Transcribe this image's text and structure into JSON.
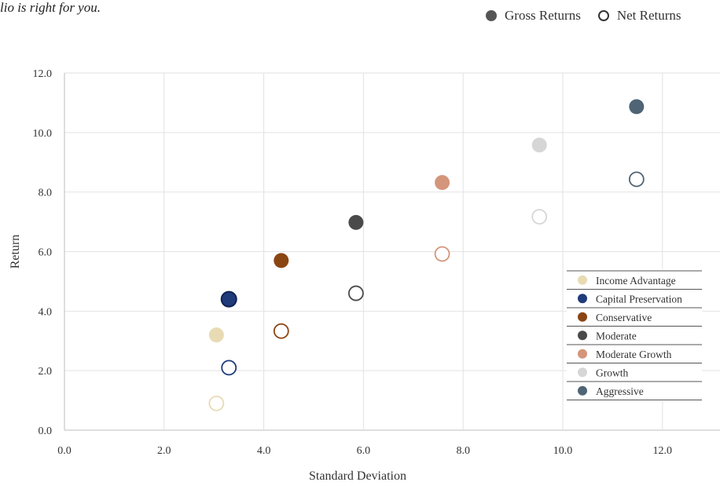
{
  "intro_text": "lio is right for you.",
  "top_legend": {
    "gross_label": "Gross Returns",
    "net_label": "Net Returns"
  },
  "chart_data": {
    "type": "scatter",
    "xlabel": "Standard Deviation",
    "ylabel": "Return",
    "xlim": [
      0,
      13
    ],
    "ylim": [
      0,
      12
    ],
    "x_ticks": [
      "0.0",
      "2.0",
      "4.0",
      "6.0",
      "8.0",
      "10.0",
      "12.0"
    ],
    "y_ticks": [
      "0.0",
      "2.0",
      "4.0",
      "6.0",
      "8.0",
      "10.0",
      "12.0"
    ],
    "grid": true,
    "legend_position": "right",
    "series": [
      {
        "name": "Income Advantage",
        "color": "#e8dbb4",
        "std_dev": 3.05,
        "gross_return": 3.2,
        "net_return": 0.9
      },
      {
        "name": "Capital Preservation",
        "color": "#1f3b7a",
        "std_dev": 3.3,
        "gross_return": 4.4,
        "net_return": 2.1
      },
      {
        "name": "Conservative",
        "color": "#8b4513",
        "std_dev": 4.35,
        "gross_return": 5.7,
        "net_return": 3.33
      },
      {
        "name": "Moderate",
        "color": "#4a4a4a",
        "std_dev": 5.85,
        "gross_return": 6.98,
        "net_return": 4.6
      },
      {
        "name": "Moderate Growth",
        "color": "#d4957a",
        "std_dev": 7.58,
        "gross_return": 8.32,
        "net_return": 5.92
      },
      {
        "name": "Growth",
        "color": "#d6d6d6",
        "std_dev": 9.53,
        "gross_return": 9.58,
        "net_return": 7.17
      },
      {
        "name": "Aggressive",
        "color": "#4f6475",
        "std_dev": 11.48,
        "gross_return": 10.87,
        "net_return": 8.43
      }
    ]
  }
}
